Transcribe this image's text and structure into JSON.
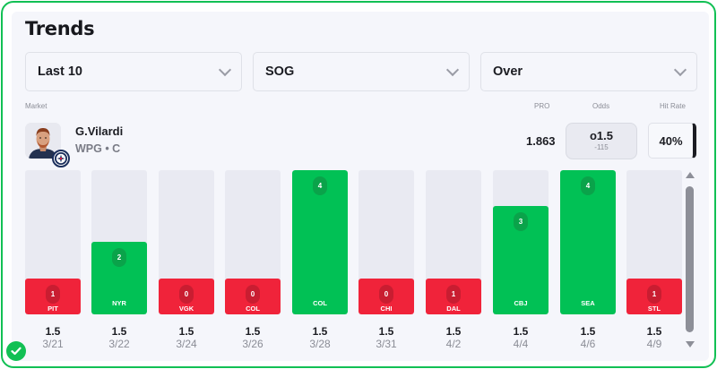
{
  "title": "Trends",
  "filters": [
    {
      "label": "Last 10"
    },
    {
      "label": "SOG"
    },
    {
      "label": "Over"
    }
  ],
  "labels": {
    "market": "Market",
    "pro": "PRO",
    "odds": "Odds",
    "hit_rate": "Hit Rate"
  },
  "player": {
    "name": "G.Vilardi",
    "meta": "WPG • C",
    "avatar_icon": "player-headshot",
    "team_logo_icon": "jets-logo"
  },
  "pro_value": "1.863",
  "odds": {
    "line": "o1.5",
    "price": "-115"
  },
  "hit_rate": "40%",
  "colors": {
    "hit": "#01c155",
    "miss": "#f0233a",
    "accent": "#12c054"
  },
  "chart_data": {
    "type": "bar",
    "title": "Trends",
    "ylim": [
      0,
      4
    ],
    "threshold": 1.5,
    "categories": [
      "3/21",
      "3/22",
      "3/24",
      "3/26",
      "3/28",
      "3/31",
      "4/2",
      "4/4",
      "4/6",
      "4/9"
    ],
    "opponents": [
      "PIT",
      "NYR",
      "VGK",
      "COL",
      "COL",
      "CHI",
      "DAL",
      "CBJ",
      "SEA",
      "STL"
    ],
    "values": [
      1,
      2,
      0,
      0,
      4,
      0,
      1,
      3,
      4,
      1
    ],
    "value_labels": [
      "1",
      "2",
      "0",
      "0",
      "4",
      "0",
      "1",
      "3",
      "4",
      "1"
    ],
    "lines": [
      "1.5",
      "1.5",
      "1.5",
      "1.5",
      "1.5",
      "1.5",
      "1.5",
      "1.5",
      "1.5",
      "1.5"
    ],
    "results": [
      "miss",
      "hit",
      "miss",
      "miss",
      "hit",
      "miss",
      "miss",
      "hit",
      "hit",
      "miss"
    ]
  }
}
